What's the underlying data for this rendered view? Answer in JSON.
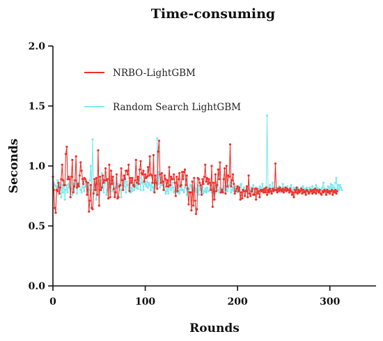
{
  "chart_data": {
    "type": "line",
    "title": "Time-consuming",
    "xlabel": "Rounds",
    "ylabel": "Seconds",
    "xlim": [
      0,
      350
    ],
    "ylim": [
      0.0,
      2.0
    ],
    "x_ticks": [
      0,
      100,
      200,
      300
    ],
    "x_tick_labels": [
      "0",
      "100",
      "200",
      "300"
    ],
    "y_ticks": [
      0.0,
      0.5,
      1.0,
      1.5,
      2.0
    ],
    "y_tick_labels": [
      "0.0",
      "0.5",
      "1.0",
      "1.5",
      "2.0"
    ],
    "grid": false,
    "legend_position": "upper-left",
    "series": [
      {
        "name": "NRBO-LightGBM",
        "color": "#f0302a",
        "marker": "circle",
        "values": [
          0.91,
          0.8,
          0.65,
          0.61,
          0.8,
          0.79,
          0.86,
          0.77,
          0.82,
          0.89,
          1.01,
          0.88,
          0.84,
          0.84,
          1.1,
          1.16,
          0.89,
          0.91,
          0.89,
          0.74,
          0.91,
          1.05,
          0.78,
          0.83,
          0.88,
          1.08,
          0.82,
          0.85,
          0.83,
          0.92,
          1.03,
          0.96,
          0.89,
          0.85,
          0.9,
          0.89,
          0.87,
          0.76,
          0.86,
          0.62,
          0.71,
          0.84,
          0.65,
          0.64,
          0.77,
          0.89,
          0.8,
          0.9,
          0.76,
          1.13,
          0.67,
          0.91,
          0.8,
          0.82,
          0.92,
          0.86,
          0.88,
          0.98,
          0.88,
          0.89,
          0.73,
          1.01,
          0.74,
          0.96,
          0.85,
          0.91,
          0.81,
          0.74,
          0.78,
          0.93,
          0.73,
          0.74,
          0.83,
          0.84,
          0.98,
          0.88,
          0.8,
          0.92,
          0.89,
          0.96,
          0.96,
          0.93,
          1.01,
          0.79,
          0.9,
          0.86,
          0.9,
          0.84,
          0.83,
          0.88,
          1.05,
          0.86,
          0.91,
          0.85,
          0.97,
          1.04,
          0.94,
          0.93,
          0.96,
          0.87,
          0.93,
          0.9,
          0.91,
          0.99,
          0.92,
          1.08,
          0.93,
          0.92,
          0.86,
          1.09,
          0.78,
          0.92,
          0.86,
          0.81,
          1.12,
          1.21,
          0.93,
          0.86,
          0.94,
          0.87,
          0.8,
          0.92,
          0.89,
          0.83,
          0.88,
          0.83,
          0.99,
          0.84,
          0.91,
          0.89,
          0.89,
          0.93,
          0.86,
          0.75,
          0.91,
          0.79,
          0.89,
          0.94,
          0.83,
          0.84,
          0.95,
          0.89,
          0.95,
          0.97,
          0.84,
          0.92,
          0.81,
          0.68,
          0.78,
          0.78,
          0.63,
          0.87,
          0.67,
          0.9,
          0.71,
          0.6,
          0.64,
          0.9,
          0.89,
          0.86,
          0.84,
          0.76,
          0.89,
          0.85,
          0.91,
          1.01,
          0.87,
          0.9,
          0.85,
          0.89,
          0.86,
          0.8,
          1.0,
          0.66,
          0.86,
          0.72,
          0.93,
          0.79,
          0.84,
          0.97,
          0.89,
          1.03,
          0.78,
          0.8,
          0.78,
          0.89,
          0.98,
          0.77,
          1.0,
          0.83,
          0.92,
          0.91,
          1.18,
          0.83,
          0.88,
          0.93,
          0.85,
          0.77,
          0.79,
          0.81,
          0.83,
          0.79,
          0.82,
          0.72,
          0.78,
          0.73,
          0.8,
          0.79,
          0.75,
          0.79,
          0.83,
          0.74,
          0.92,
          0.77,
          0.75,
          0.79,
          0.81,
          0.76,
          0.76,
          0.81,
          0.72,
          0.81,
          0.77,
          0.79,
          0.74,
          0.8,
          0.79,
          0.8,
          0.78,
          0.81,
          0.78,
          0.82,
          0.76,
          0.8,
          0.78,
          0.81,
          0.79,
          0.77,
          0.81,
          0.79,
          0.8,
          1.02,
          0.8,
          0.78,
          0.81,
          0.79,
          0.82,
          0.8,
          0.79,
          0.81,
          0.78,
          0.8,
          0.82,
          0.79,
          0.81,
          0.8,
          0.78,
          0.81,
          0.79,
          0.76,
          0.78,
          0.74,
          0.8,
          0.78,
          0.82,
          0.77,
          0.8,
          0.78,
          0.79,
          0.81,
          0.77,
          0.8,
          0.78,
          0.79,
          0.76,
          0.8,
          0.79,
          0.77,
          0.78,
          0.8,
          0.79,
          0.77,
          0.8,
          0.78,
          0.81,
          0.77,
          0.8,
          0.79,
          0.78,
          0.8,
          0.77,
          0.76,
          0.79,
          0.78,
          0.8,
          0.79,
          0.76,
          0.8,
          0.78,
          0.79,
          0.77,
          0.79,
          0.8,
          0.76,
          0.79,
          0.78,
          0.8,
          0.77,
          0.79
        ]
      },
      {
        "name": "Random Search LightGBM",
        "color": "#7fe8ee",
        "marker": "circle",
        "values": [
          0.82,
          0.86,
          0.84,
          0.83,
          0.81,
          0.88,
          0.83,
          0.85,
          0.8,
          0.74,
          0.84,
          0.78,
          0.87,
          0.72,
          0.8,
          0.84,
          0.78,
          0.85,
          0.82,
          0.9,
          0.81,
          0.76,
          0.85,
          0.79,
          0.84,
          0.88,
          0.77,
          0.83,
          0.86,
          0.85,
          0.8,
          0.78,
          0.87,
          0.82,
          0.79,
          0.83,
          0.88,
          0.84,
          0.78,
          0.8,
          0.88,
          1.0,
          0.8,
          1.22,
          0.78,
          0.8,
          0.82,
          0.72,
          0.85,
          0.88,
          0.8,
          0.85,
          0.88,
          0.94,
          0.83,
          0.78,
          0.86,
          0.95,
          0.76,
          0.8,
          0.86,
          0.85,
          0.82,
          0.88,
          0.79,
          0.8,
          0.86,
          0.75,
          0.82,
          0.9,
          0.82,
          0.85,
          0.84,
          0.8,
          0.74,
          0.89,
          0.81,
          0.83,
          0.9,
          0.78,
          0.87,
          0.84,
          0.8,
          0.85,
          0.78,
          0.82,
          0.79,
          0.86,
          0.8,
          0.84,
          0.82,
          0.86,
          0.81,
          0.88,
          0.9,
          0.8,
          0.92,
          0.86,
          0.8,
          0.88,
          0.85,
          0.83,
          0.87,
          0.82,
          0.86,
          0.84,
          0.8,
          0.86,
          0.82,
          0.79,
          0.88,
          0.84,
          0.82,
          1.23,
          0.85,
          0.95,
          0.82,
          0.88,
          0.84,
          0.86,
          0.8,
          0.82,
          0.77,
          0.79,
          0.81,
          0.77,
          0.82,
          0.84,
          0.8,
          0.86,
          0.82,
          0.78,
          0.79,
          0.8,
          0.82,
          0.78,
          0.84,
          0.77,
          0.8,
          0.82,
          0.8,
          0.8,
          0.78,
          0.82,
          0.85,
          0.76,
          0.82,
          0.79,
          0.81,
          0.84,
          0.83,
          0.78,
          0.8,
          0.82,
          0.79,
          0.81,
          0.78,
          0.84,
          0.76,
          0.83,
          0.8,
          0.78,
          0.82,
          0.77,
          0.79,
          0.81,
          0.78,
          0.82,
          0.79,
          0.79,
          0.81,
          0.84,
          0.78,
          0.79,
          0.81,
          0.79,
          0.77,
          0.83,
          0.86,
          0.8,
          0.78,
          0.82,
          0.8,
          0.79,
          0.81,
          0.78,
          0.83,
          0.8,
          0.81,
          0.79,
          0.82,
          0.84,
          0.86,
          0.78,
          0.8,
          0.82,
          0.79,
          0.81,
          0.83,
          0.8,
          0.78,
          0.82,
          0.8,
          0.84,
          0.85,
          0.78,
          0.8,
          0.82,
          0.79,
          0.8,
          0.82,
          0.78,
          0.81,
          0.8,
          0.79,
          0.82,
          0.79,
          0.84,
          0.8,
          0.78,
          0.82,
          0.8,
          0.81,
          0.79,
          0.83,
          0.82,
          0.8,
          0.85,
          0.8,
          0.79,
          0.81,
          0.82,
          1.42,
          0.82,
          0.8,
          0.84,
          0.79,
          0.81,
          0.86,
          0.8,
          0.82,
          0.8,
          0.79,
          0.82,
          0.8,
          0.83,
          0.8,
          0.78,
          0.81,
          0.85,
          0.82,
          0.79,
          0.8,
          0.8,
          0.83,
          0.8,
          0.79,
          0.82,
          0.84,
          0.8,
          0.8,
          0.82,
          0.81,
          0.79,
          0.8,
          0.82,
          0.81,
          0.79,
          0.8,
          0.82,
          0.8,
          0.83,
          0.8,
          0.81,
          0.8,
          0.82,
          0.79,
          0.8,
          0.82,
          0.81,
          0.8,
          0.83,
          0.8,
          0.81,
          0.8,
          0.84,
          0.82,
          0.8,
          0.81,
          0.79,
          0.8,
          0.81,
          0.82,
          0.86,
          0.8,
          0.81,
          0.79,
          0.8,
          0.83,
          0.8,
          0.82,
          0.85,
          0.81,
          0.84,
          0.8,
          0.82,
          0.86,
          0.9,
          0.81,
          0.84,
          0.8,
          0.84,
          0.82,
          0.8
        ]
      }
    ]
  }
}
